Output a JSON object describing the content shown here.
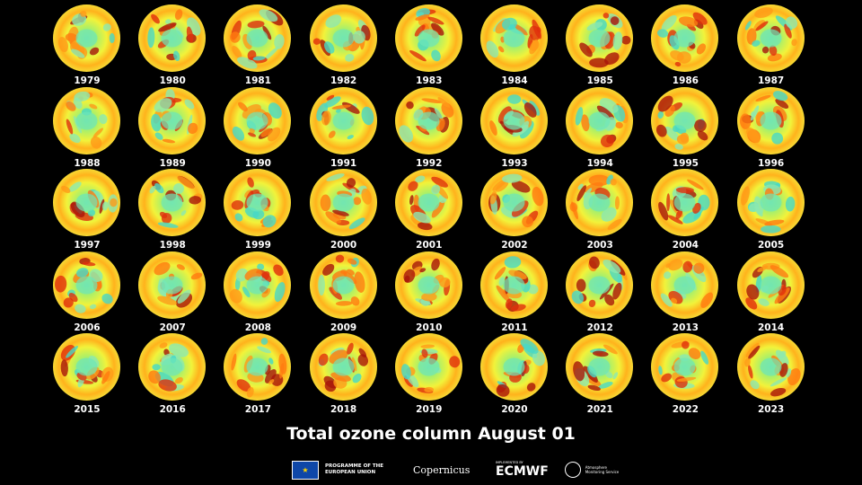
{
  "years": [
    "1979",
    "1980",
    "1981",
    "1982",
    "1983",
    "1984",
    "1985",
    "1986",
    "1987",
    "1988",
    "1989",
    "1990",
    "1991",
    "1992",
    "1993",
    "1994",
    "1995",
    "1996",
    "1997",
    "1998",
    "1999",
    "2000",
    "2001",
    "2002",
    "2003",
    "2004",
    "2005",
    "2006",
    "2007",
    "2008",
    "2009",
    "2010",
    "2011",
    "2012",
    "2013",
    "2014",
    "2015",
    "2016",
    "2017",
    "2018",
    "2019",
    "2020",
    "2021",
    "2022",
    "2023"
  ],
  "title": "Total ozone column August 01",
  "footer": {
    "eu_text": "PROGRAMME OF THE EUROPEAN UNION",
    "copernicus": "Copernicus",
    "ecmwf_small": "IMPLEMENTED BY",
    "ecmwf": "ECMWF",
    "cams": "Atmosphere Monitoring Service"
  },
  "colors": {
    "background": "#000000",
    "low": "#2fd6d0",
    "high": "#8b0a0a",
    "edge": "#6fe28a"
  }
}
